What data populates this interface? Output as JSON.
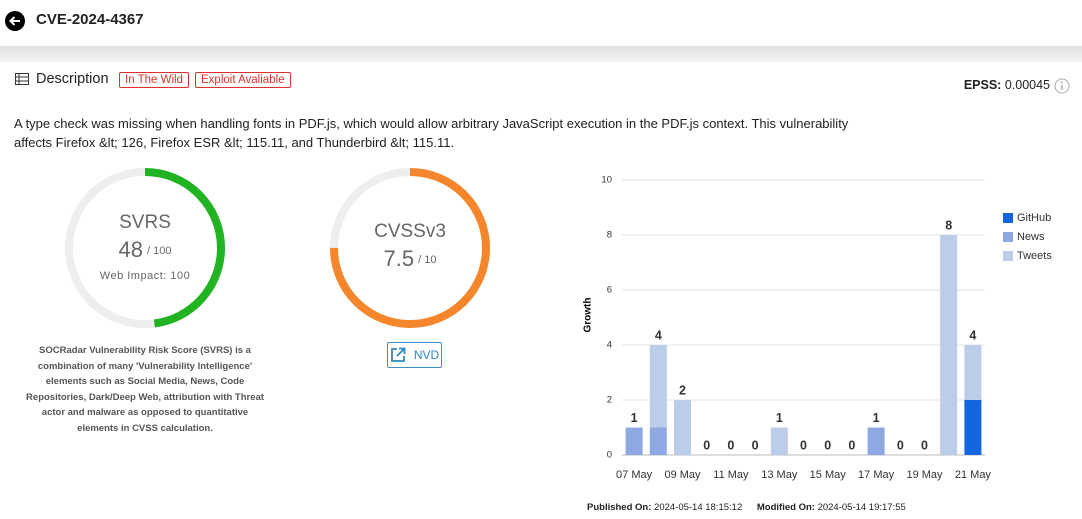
{
  "header": {
    "title": "CVE-2024-4367"
  },
  "description": {
    "heading": "Description",
    "badges": [
      "In The Wild",
      "Exploit Avaliable"
    ],
    "epss_label": "EPSS:",
    "epss_value": 0.00045,
    "text": "A type check was missing when handling fonts in PDF.js, which would allow arbitrary JavaScript execution in the PDF.js context. This vulnerability affects Firefox &lt; 126, Firefox ESR &lt; 115.11, and Thunderbird &lt; 115.11."
  },
  "svrs": {
    "label": "SVRS",
    "score": 48,
    "max": 100,
    "max_label": "/ 100",
    "web_impact": "Web Impact: 100",
    "color": "#21b321",
    "note": "SOCRadar Vulnerability Risk Score (SVRS) is a combination of many 'Vulnerability Intelligence' elements such as Social Media, News, Code Repositories, Dark/Deep Web, attribution with Threat actor and malware as opposed to quantitative elements in CVSS calculation."
  },
  "cvss": {
    "label": "CVSSv3",
    "score": 7.5,
    "max": 10,
    "max_label": "/ 10",
    "color": "#f5862b",
    "link": "NVD"
  },
  "chart_data": {
    "type": "bar",
    "stacked": true,
    "y_label": "Growth",
    "categories": [
      "07 May",
      null,
      "09 May",
      null,
      "11 May",
      null,
      "13 May",
      null,
      "15 May",
      null,
      "17 May",
      null,
      "19 May",
      null,
      "21 May"
    ],
    "series": [
      {
        "name": "GitHub",
        "color": "#1565e0",
        "values": [
          0,
          0,
          0,
          0,
          0,
          0,
          0,
          0,
          0,
          0,
          0,
          0,
          0,
          0,
          2
        ]
      },
      {
        "name": "News",
        "color": "#8ea9e2",
        "values": [
          1,
          1,
          0,
          0,
          0,
          0,
          0,
          0,
          0,
          0,
          1,
          0,
          0,
          0,
          0
        ]
      },
      {
        "name": "Tweets",
        "color": "#bccde9",
        "values": [
          0,
          3,
          2,
          0,
          0,
          0,
          1,
          0,
          0,
          0,
          0,
          0,
          0,
          8,
          2
        ]
      }
    ],
    "totals": [
      1,
      4,
      2,
      0,
      0,
      0,
      1,
      0,
      0,
      0,
      1,
      0,
      0,
      8,
      4
    ],
    "ylim": [
      0,
      10
    ],
    "yticks": [
      0,
      2,
      4,
      6,
      8,
      10
    ],
    "grid": true,
    "legend": "right"
  },
  "footer": {
    "published_label": "Published On:",
    "published": "2024-05-14 18:15:12",
    "modified_label": "Modified On:",
    "modified": "2024-05-14 19:17:55"
  }
}
